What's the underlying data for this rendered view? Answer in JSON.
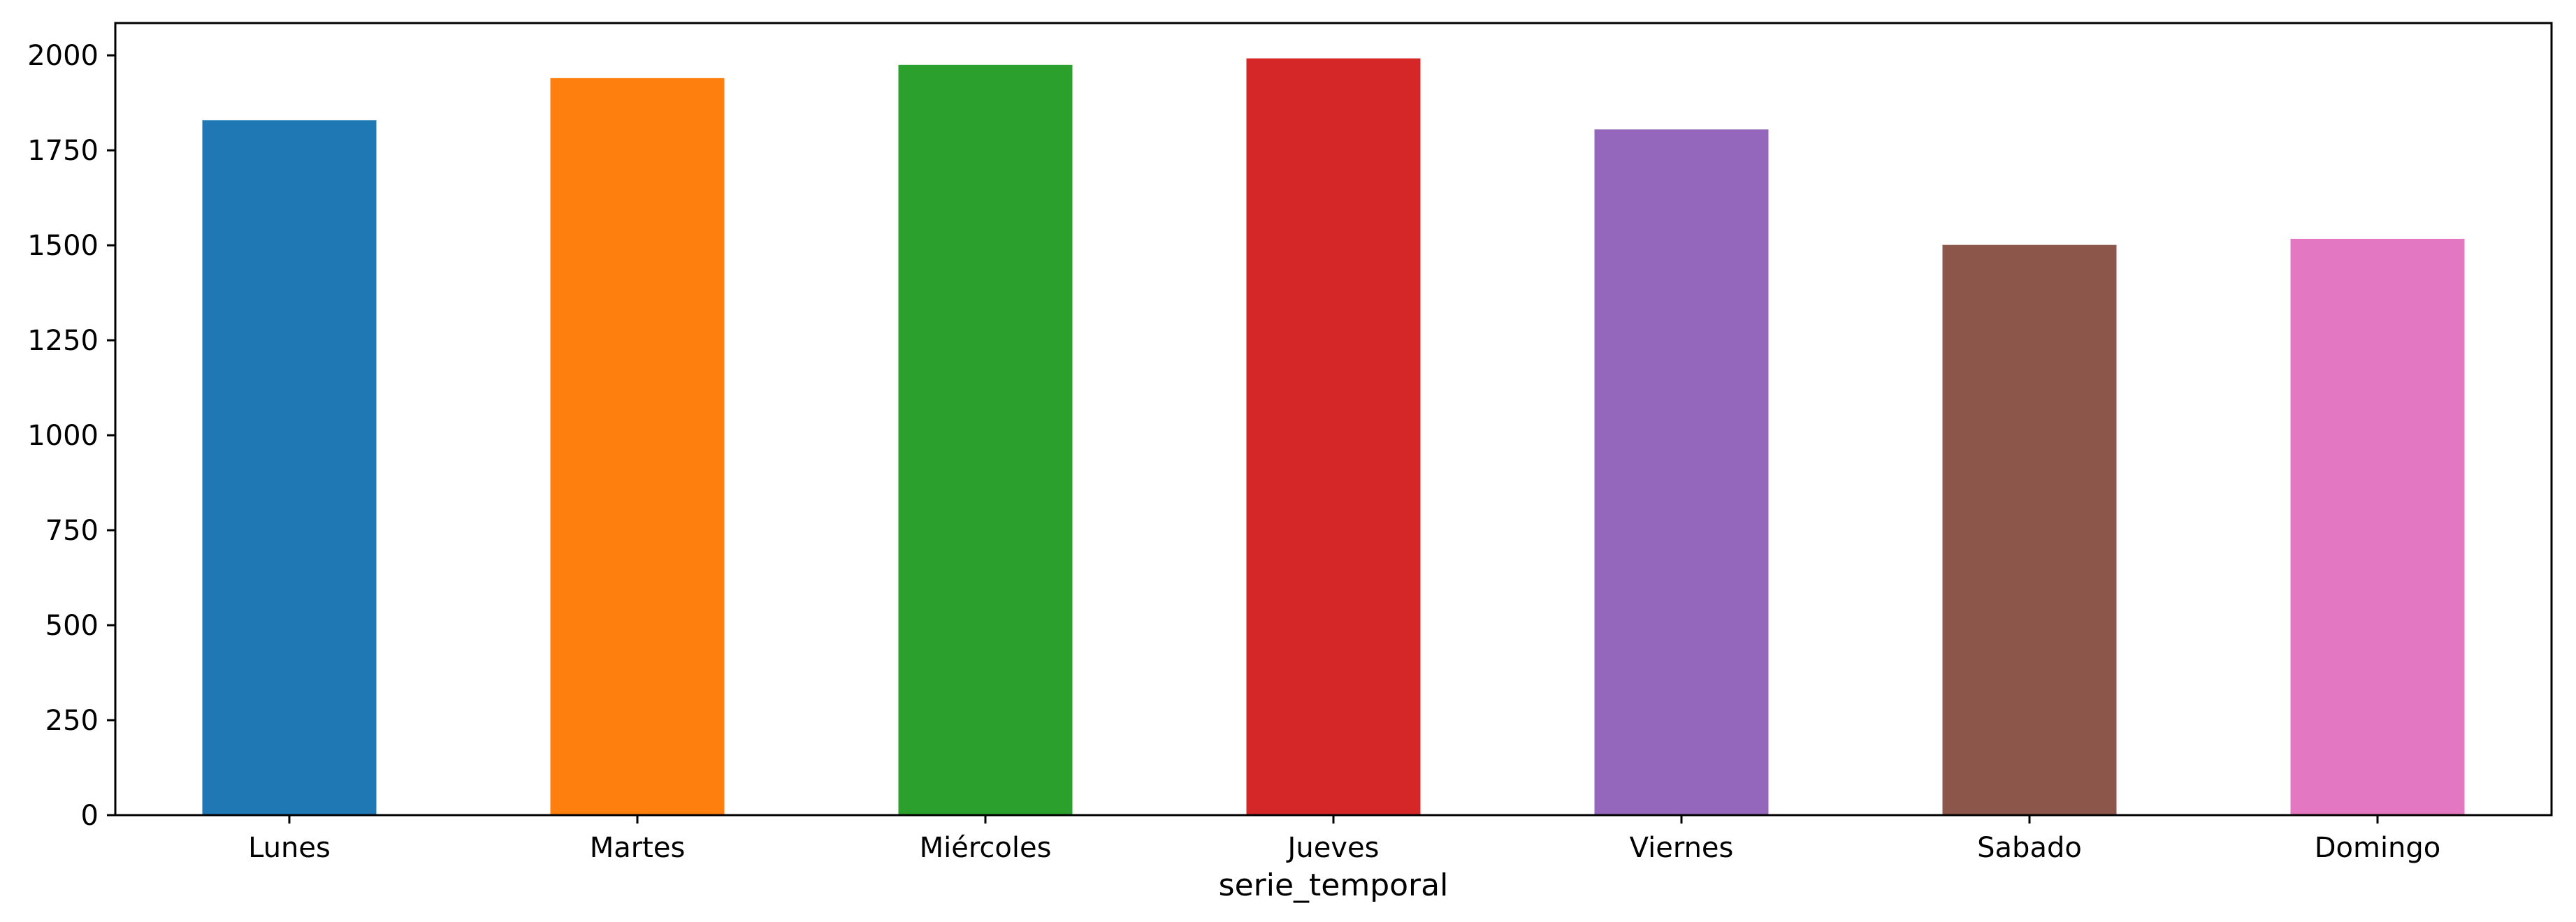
{
  "chart_data": {
    "type": "bar",
    "title": "",
    "xlabel": "serie_temporal",
    "ylabel": "",
    "categories": [
      "Lunes",
      "Martes",
      "Miércoles",
      "Jueves",
      "Viernes",
      "Sabado",
      "Domingo"
    ],
    "values": [
      1829,
      1940,
      1975,
      1992,
      1805,
      1501,
      1517
    ],
    "colors": [
      "#1f77b4",
      "#ff7f0e",
      "#2ca02c",
      "#d62728",
      "#9467bd",
      "#8c564b",
      "#e377c2"
    ],
    "ylim": [
      0,
      2085
    ],
    "yticks": [
      0,
      250,
      500,
      750,
      1000,
      1250,
      1500,
      1750,
      2000
    ],
    "grid": false,
    "legend": "none"
  }
}
